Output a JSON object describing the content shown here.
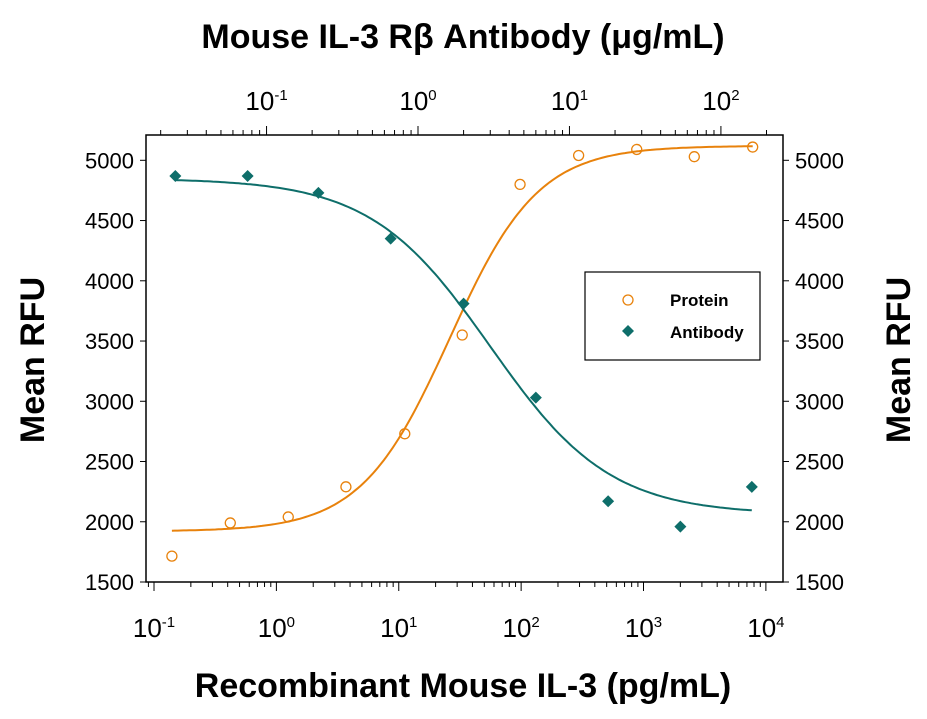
{
  "chart_data": {
    "type": "scatter",
    "title": "Mouse IL-3 Rβ Antibody (μg/mL)",
    "xlabel": "Recombinant Mouse IL-3 (pg/mL)",
    "ylabel": "Mean RFU",
    "ylabel_right": "Mean RFU",
    "x_scale": "log",
    "xlim": [
      0.086,
      13800
    ],
    "x2_scale": "log",
    "x2lim": [
      0.016,
      257
    ],
    "ylim": [
      1500,
      5210
    ],
    "yticks": [
      1500,
      2000,
      2500,
      3000,
      3500,
      4000,
      4500,
      5000
    ],
    "xticks": [
      {
        "base": "10",
        "exp": "-1",
        "v": 0.1
      },
      {
        "base": "10",
        "exp": "0",
        "v": 1
      },
      {
        "base": "10",
        "exp": "1",
        "v": 10
      },
      {
        "base": "10",
        "exp": "2",
        "v": 100
      },
      {
        "base": "10",
        "exp": "3",
        "v": 1000
      },
      {
        "base": "10",
        "exp": "4",
        "v": 10000
      }
    ],
    "x2ticks": [
      {
        "base": "10",
        "exp": "-1",
        "v": 0.1
      },
      {
        "base": "10",
        "exp": "0",
        "v": 1
      },
      {
        "base": "10",
        "exp": "1",
        "v": 10
      },
      {
        "base": "10",
        "exp": "2",
        "v": 100
      }
    ],
    "grid": false,
    "legend_placement": "right-center",
    "series": [
      {
        "name": "Protein",
        "axis": "bottom",
        "marker": "open-circle",
        "color": "#E8820C",
        "x": [
          0.14,
          0.42,
          1.25,
          3.7,
          11.2,
          33,
          98,
          295,
          880,
          2600,
          7800
        ],
        "y": [
          1715,
          1990,
          2040,
          2290,
          2730,
          3550,
          4800,
          5040,
          5090,
          5030,
          5110
        ],
        "fit": {
          "bottom": 1920,
          "top": 5120,
          "ec50": 26,
          "hill": 1.2
        }
      },
      {
        "name": "Antibody",
        "axis": "top",
        "marker": "filled-diamond",
        "color": "#0E6E6A",
        "x": [
          0.025,
          0.075,
          0.22,
          0.66,
          2.0,
          6,
          18,
          54,
          160
        ],
        "y": [
          4870,
          4870,
          4730,
          4350,
          3810,
          3030,
          2170,
          1960,
          2290
        ],
        "fit": {
          "bottom": 2060,
          "top": 4850,
          "ec50": 3,
          "hill": -1.1
        }
      }
    ]
  }
}
